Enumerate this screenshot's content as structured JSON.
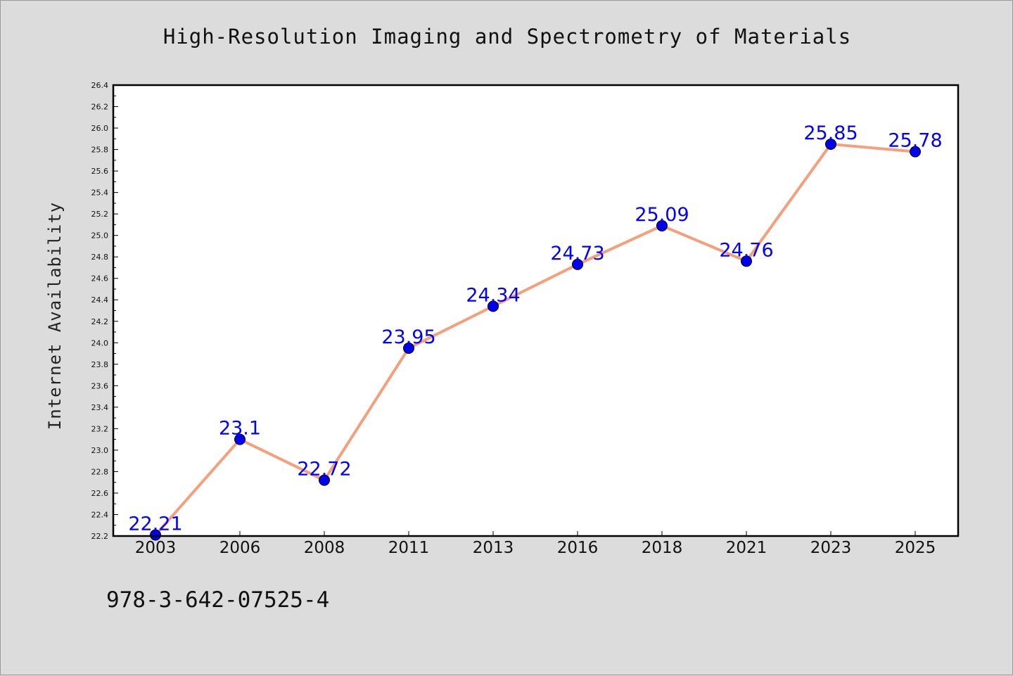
{
  "chart_data": {
    "type": "line",
    "title": "High-Resolution Imaging and Spectrometry of Materials",
    "xlabel": "",
    "ylabel": "Internet Availability",
    "categories": [
      "2003",
      "2006",
      "2008",
      "2011",
      "2013",
      "2016",
      "2018",
      "2021",
      "2023",
      "2025"
    ],
    "series": [
      {
        "values": [
          22.21,
          23.1,
          22.72,
          23.95,
          24.34,
          24.73,
          25.09,
          24.76,
          25.85,
          25.78
        ],
        "data_labels": [
          "22.21",
          "23.1",
          "22.72",
          "23.95",
          "24.34",
          "24.73",
          "25.09",
          "24.76",
          "25.85",
          "25.78"
        ],
        "line_color": "#f4a07c",
        "marker_color": "#0000ee",
        "label_color": "#0000ff"
      }
    ],
    "ylim": [
      22.2,
      26.4
    ],
    "yticks": [
      "22.2",
      "22.4",
      "22.6",
      "22.8",
      "23.0",
      "23.2",
      "23.4",
      "23.6",
      "23.8",
      "24.0",
      "24.2",
      "24.4",
      "24.6",
      "24.8",
      "25.0",
      "25.2",
      "25.4",
      "25.6",
      "25.8",
      "26.0",
      "26.2",
      "26.4"
    ],
    "grid": false,
    "legend": "none"
  },
  "footer": {
    "isbn": "978-3-642-07525-4"
  },
  "colors": {
    "background": "#dcdcdc",
    "plot_background": "#ffffff"
  }
}
